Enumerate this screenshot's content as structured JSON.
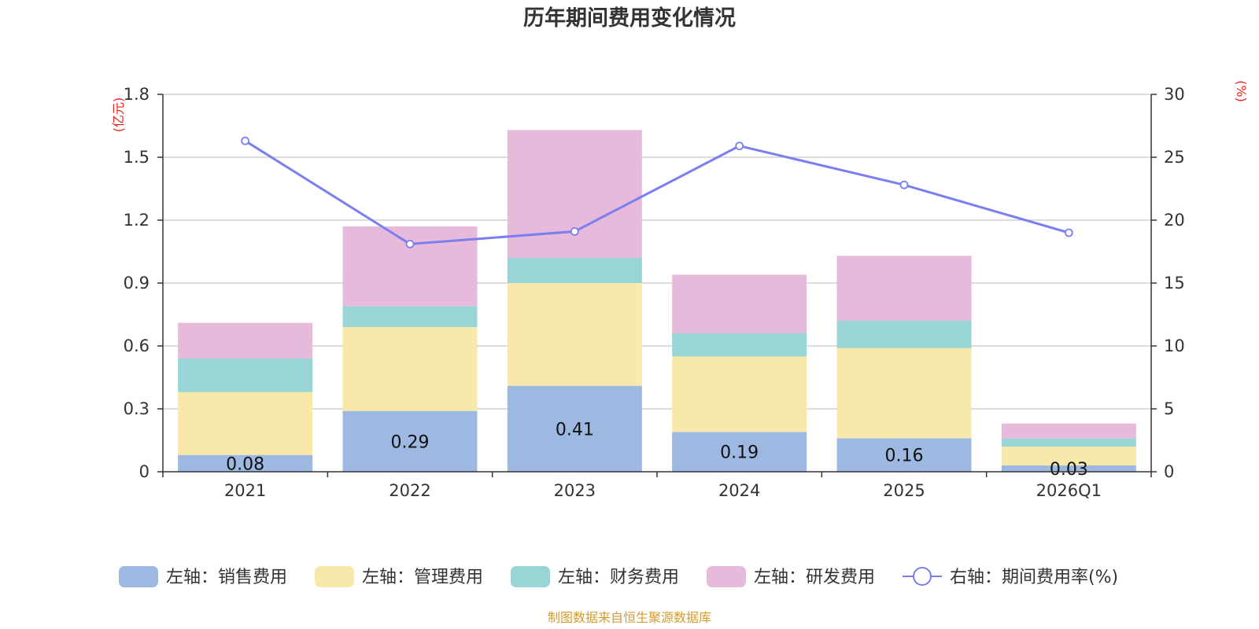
{
  "chart_data": {
    "type": "bar",
    "stacked": true,
    "title": "历年期间费用变化情况",
    "categories": [
      "2021",
      "2022",
      "2023",
      "2024",
      "2025",
      "2026Q1"
    ],
    "left_axis": {
      "unit": "(亿元)",
      "ylim": [
        0,
        1.8
      ],
      "ticks": [
        "0",
        "0.3",
        "0.6",
        "0.9",
        "1.2",
        "1.5",
        "1.8"
      ]
    },
    "right_axis": {
      "unit": "(%)",
      "ylim": [
        0,
        30
      ],
      "ticks": [
        "0",
        "5",
        "10",
        "15",
        "20",
        "25",
        "30"
      ]
    },
    "series": [
      {
        "name": "左轴：销售费用",
        "color": "#9db8e1",
        "values": [
          0.08,
          0.29,
          0.41,
          0.19,
          0.16,
          0.03
        ],
        "labels": [
          "0.08",
          "0.29",
          "0.41",
          "0.19",
          "0.16",
          "0.03"
        ]
      },
      {
        "name": "左轴：管理费用",
        "color": "#f8e8a9",
        "values": [
          0.3,
          0.4,
          0.49,
          0.36,
          0.43,
          0.09
        ]
      },
      {
        "name": "左轴：财务费用",
        "color": "#99d5d5",
        "values": [
          0.16,
          0.1,
          0.12,
          0.11,
          0.13,
          0.04
        ]
      },
      {
        "name": "左轴：研发费用",
        "color": "#e7b9da",
        "values": [
          0.17,
          0.38,
          0.61,
          0.28,
          0.31,
          0.07
        ]
      }
    ],
    "line": {
      "name": "右轴：期间费用率(%)",
      "color": "#7b7ef0",
      "values": [
        26.3,
        18.1,
        19.1,
        25.9,
        22.8,
        19.0
      ]
    },
    "grid": true,
    "legend": "bottom"
  },
  "source": "制图数据来自恒生聚源数据库"
}
